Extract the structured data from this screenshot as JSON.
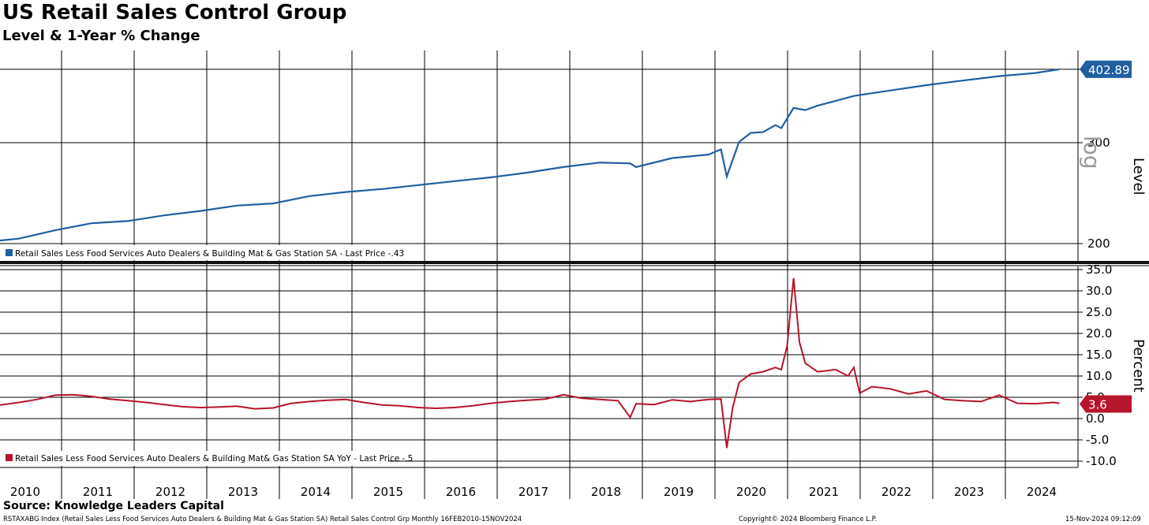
{
  "header": {
    "title": "US Retail Sales Control Group",
    "subtitle": "Level & 1-Year % Change"
  },
  "footer": {
    "source": "Source: Knowledge Leaders Capital",
    "description": "RSTAXABG Index (Retail Sales Less Food Services Auto Dealers & Building Mat & Gas Station SA) Retail Sales Control Grp  Monthly 16FEB2010-15NOV2024",
    "copyright": "Copyright© 2024 Bloomberg Finance L.P.",
    "timestamp": "15-Nov-2024 09:12:09"
  },
  "colors": {
    "level_series": "#1f5fa0",
    "yoy_series": "#b8142b",
    "grid": "#000000"
  },
  "chart_data": [
    {
      "type": "line",
      "panel": "top",
      "y_scale": "log",
      "ylabel": "Level",
      "scale_label": "log",
      "ylim": [
        195,
        420
      ],
      "yticks": [
        200,
        300
      ],
      "ytick_labels": [
        "200",
        "300"
      ],
      "last_value_label": "402.89",
      "grid": true,
      "legend_placement": "bottom-left",
      "series": [
        {
          "name": "Retail Sales Less Food Services Auto Dealers & Building Mat & Gas Station SA - Last Price -.43",
          "x": [
            2010.0,
            2010.5,
            2011.0,
            2011.5,
            2012.0,
            2012.5,
            2013.0,
            2013.5,
            2014.0,
            2014.5,
            2015.0,
            2015.5,
            2016.0,
            2016.5,
            2017.0,
            2017.5,
            2018.0,
            2018.5,
            2018.92,
            2019.0,
            2019.5,
            2020.0,
            2020.17,
            2020.25,
            2020.42,
            2020.58,
            2020.75,
            2020.92,
            2021.0,
            2021.17,
            2021.33,
            2021.5,
            2021.75,
            2022.0,
            2022.5,
            2023.0,
            2023.5,
            2024.0,
            2024.5,
            2024.83
          ],
          "values": [
            201,
            204,
            211,
            217,
            219,
            224,
            228,
            233,
            235,
            242,
            246,
            249,
            253,
            257,
            261,
            266,
            272,
            277,
            276,
            272,
            282,
            286,
            292,
            262,
            301,
            312,
            313,
            322,
            318,
            345,
            342,
            348,
            355,
            362,
            370,
            378,
            385,
            392,
            397,
            402.89
          ]
        }
      ]
    },
    {
      "type": "line",
      "panel": "bottom",
      "ylabel": "Percent",
      "ylim": [
        -12,
        36
      ],
      "yticks": [
        -10,
        -5,
        0,
        5,
        10,
        15,
        20,
        25,
        30,
        35
      ],
      "ytick_labels": [
        "-10.0",
        "-5.0",
        "0.0",
        "5.0",
        "10.0",
        "15.0",
        "20.0",
        "25.0",
        "30.0",
        "35.0"
      ],
      "last_value_label": "3.6",
      "grid": true,
      "legend_placement": "bottom-left",
      "series": [
        {
          "name": "Retail Sales Less Food Services Auto Dealers & Building Mat& Gas Station SA YoY - Last Price -.5",
          "x": [
            2010.0,
            2010.25,
            2010.5,
            2010.75,
            2011.0,
            2011.25,
            2011.5,
            2011.75,
            2012.0,
            2012.25,
            2012.5,
            2012.75,
            2013.0,
            2013.25,
            2013.5,
            2013.75,
            2014.0,
            2014.25,
            2014.5,
            2014.75,
            2015.0,
            2015.25,
            2015.5,
            2015.75,
            2016.0,
            2016.25,
            2016.5,
            2016.75,
            2017.0,
            2017.25,
            2017.5,
            2017.75,
            2018.0,
            2018.25,
            2018.5,
            2018.75,
            2018.92,
            2019.0,
            2019.25,
            2019.5,
            2019.75,
            2020.0,
            2020.17,
            2020.25,
            2020.33,
            2020.42,
            2020.58,
            2020.75,
            2020.92,
            2021.0,
            2021.08,
            2021.17,
            2021.25,
            2021.33,
            2021.5,
            2021.75,
            2021.92,
            2022.0,
            2022.08,
            2022.25,
            2022.5,
            2022.75,
            2023.0,
            2023.25,
            2023.5,
            2023.75,
            2024.0,
            2024.25,
            2024.5,
            2024.75,
            2024.83
          ],
          "values": [
            3.0,
            3.2,
            3.8,
            4.5,
            5.5,
            5.6,
            5.2,
            4.6,
            4.2,
            3.8,
            3.3,
            2.8,
            2.6,
            2.7,
            2.9,
            2.3,
            2.5,
            3.6,
            4.0,
            4.3,
            4.5,
            3.8,
            3.2,
            3.0,
            2.6,
            2.4,
            2.6,
            3.0,
            3.6,
            4.0,
            4.3,
            4.6,
            5.6,
            4.8,
            4.5,
            4.2,
            0.3,
            3.5,
            3.3,
            4.4,
            4.0,
            4.5,
            4.6,
            -6.9,
            2.5,
            8.5,
            10.5,
            11.0,
            12.0,
            11.5,
            17.0,
            33.0,
            18.0,
            13.0,
            11.0,
            11.5,
            10.0,
            12.0,
            6.0,
            7.5,
            7.0,
            5.8,
            6.5,
            4.5,
            4.2,
            4.0,
            5.5,
            3.6,
            3.5,
            3.8,
            3.6
          ]
        }
      ]
    }
  ],
  "x_axis": {
    "years": [
      "2010",
      "2011",
      "2012",
      "2013",
      "2014",
      "2015",
      "2016",
      "2017",
      "2018",
      "2019",
      "2020",
      "2021",
      "2022",
      "2023",
      "2024"
    ]
  }
}
